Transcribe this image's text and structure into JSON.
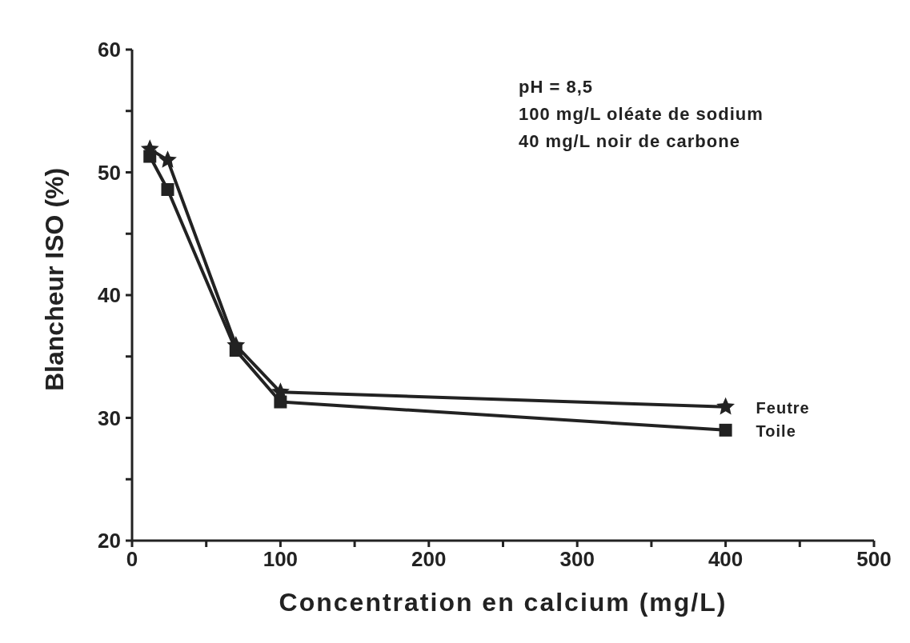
{
  "chart_data": {
    "type": "line",
    "xlabel": "Concentration en calcium (mg/L)",
    "ylabel": "Blancheur ISO  (%)",
    "annotations": [
      "pH = 8,5",
      "100 mg/L oléate de sodium",
      "40 mg/L noir de carbone"
    ],
    "xlim": [
      0,
      500
    ],
    "xticks": [
      0,
      {
        "value": 50,
        "label": null
      },
      100,
      {
        "value": 150,
        "label": null
      },
      200,
      {
        "value": 250,
        "label": null
      },
      300,
      {
        "value": 350,
        "label": null
      },
      400,
      {
        "value": 450,
        "label": null
      },
      500
    ],
    "ylim": [
      20,
      60
    ],
    "yticks": [
      20,
      {
        "value": 25,
        "label": null
      },
      30,
      {
        "value": 35,
        "label": null
      },
      40,
      {
        "value": 45,
        "label": null
      },
      50,
      {
        "value": 55,
        "label": null
      },
      60
    ],
    "grid": false,
    "line_style": "solid",
    "series": [
      {
        "name": "Feutre",
        "color": "#222222",
        "marker": "star",
        "x": [
          12,
          24,
          70,
          100,
          400
        ],
        "values": [
          51.9,
          51.0,
          35.9,
          32.1,
          30.9
        ]
      },
      {
        "name": "Toile",
        "color": "#222222",
        "marker": "square",
        "x": [
          12,
          24,
          70,
          100,
          400
        ],
        "values": [
          51.3,
          48.6,
          35.5,
          31.3,
          29.0
        ]
      }
    ]
  }
}
